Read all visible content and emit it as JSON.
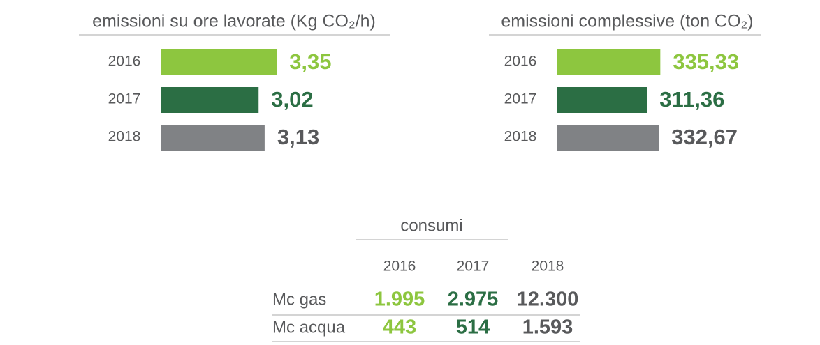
{
  "chart_data": [
    {
      "type": "hbar",
      "title": "emissioni su ore lavorate (Kg CO₂/h)",
      "categories": [
        "2016",
        "2017",
        "2018"
      ],
      "values": [
        3.35,
        3.02,
        3.13
      ],
      "value_labels": [
        "3,35",
        "3,02",
        "3,13"
      ],
      "colors": [
        "#8dc63f",
        "#2b6e44",
        "#808285"
      ],
      "xlim": [
        1.25,
        3.5
      ]
    },
    {
      "type": "hbar",
      "title": "emissioni complessive (ton CO₂)",
      "categories": [
        "2016",
        "2017",
        "2018"
      ],
      "values": [
        335.33,
        311.36,
        332.67
      ],
      "value_labels": [
        "335,33",
        "311,36",
        "332,67"
      ],
      "colors": [
        "#8dc63f",
        "#2b6e44",
        "#808285"
      ],
      "xlim": [
        150,
        350
      ]
    }
  ],
  "table": {
    "title": "consumi",
    "header": [
      "2016",
      "2017",
      "2018"
    ],
    "rows": [
      [
        "Mc gas",
        "1.995",
        "2.975",
        "12.300"
      ],
      [
        "Mc acqua",
        "443",
        "514",
        "1.593"
      ]
    ],
    "column_colors": [
      "#8dc63f",
      "#2b6e44",
      "#58595b"
    ]
  }
}
